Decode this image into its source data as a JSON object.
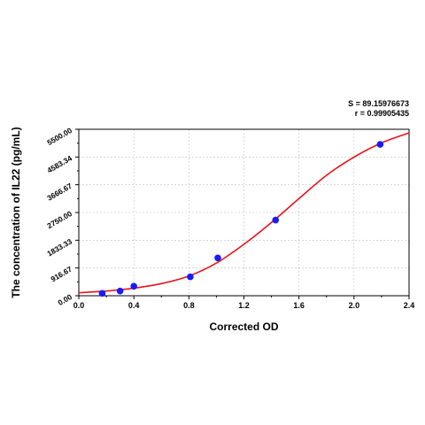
{
  "chart_data": {
    "type": "scatter",
    "xlabel": "Corrected OD",
    "ylabel": "The concentration of IL22 (pg/mL)",
    "xlim": [
      0.0,
      2.4
    ],
    "ylim": [
      0.0,
      5500.0
    ],
    "x_ticks": [
      0.0,
      0.4,
      0.8,
      1.2,
      1.6,
      2.0,
      2.4
    ],
    "x_tick_labels": [
      "0.0",
      "0.4",
      "0.8",
      "1.2",
      "1.6",
      "2.0",
      "2.4"
    ],
    "y_ticks": [
      0.0,
      916.67,
      1833.33,
      2750.0,
      3666.67,
      4583.34,
      5500.0
    ],
    "y_tick_labels": [
      "0.00",
      "916.67",
      "1833.33",
      "2750.00",
      "3666.67",
      "4583.34",
      "5500.00"
    ],
    "grid": true,
    "points": [
      {
        "x": 0.17,
        "y": 78
      },
      {
        "x": 0.3,
        "y": 156
      },
      {
        "x": 0.4,
        "y": 313
      },
      {
        "x": 0.81,
        "y": 625
      },
      {
        "x": 1.01,
        "y": 1250
      },
      {
        "x": 1.43,
        "y": 2500
      },
      {
        "x": 2.19,
        "y": 5000
      }
    ],
    "fit_curve": {
      "x": [
        0.0,
        0.2,
        0.4,
        0.6,
        0.8,
        1.0,
        1.2,
        1.4,
        1.6,
        1.8,
        2.0,
        2.2,
        2.4
      ],
      "y": [
        100,
        155,
        250,
        400,
        650,
        1080,
        1700,
        2420,
        3210,
        3980,
        4580,
        5050,
        5380
      ]
    },
    "annotations": {
      "s_value": "S = 89.15976673",
      "r_value": "r = 0.99905435"
    },
    "colors": {
      "points": "#1a1aff",
      "curve": "#e8141b",
      "grid": "#c0c0c0",
      "axis": "#000000"
    }
  }
}
